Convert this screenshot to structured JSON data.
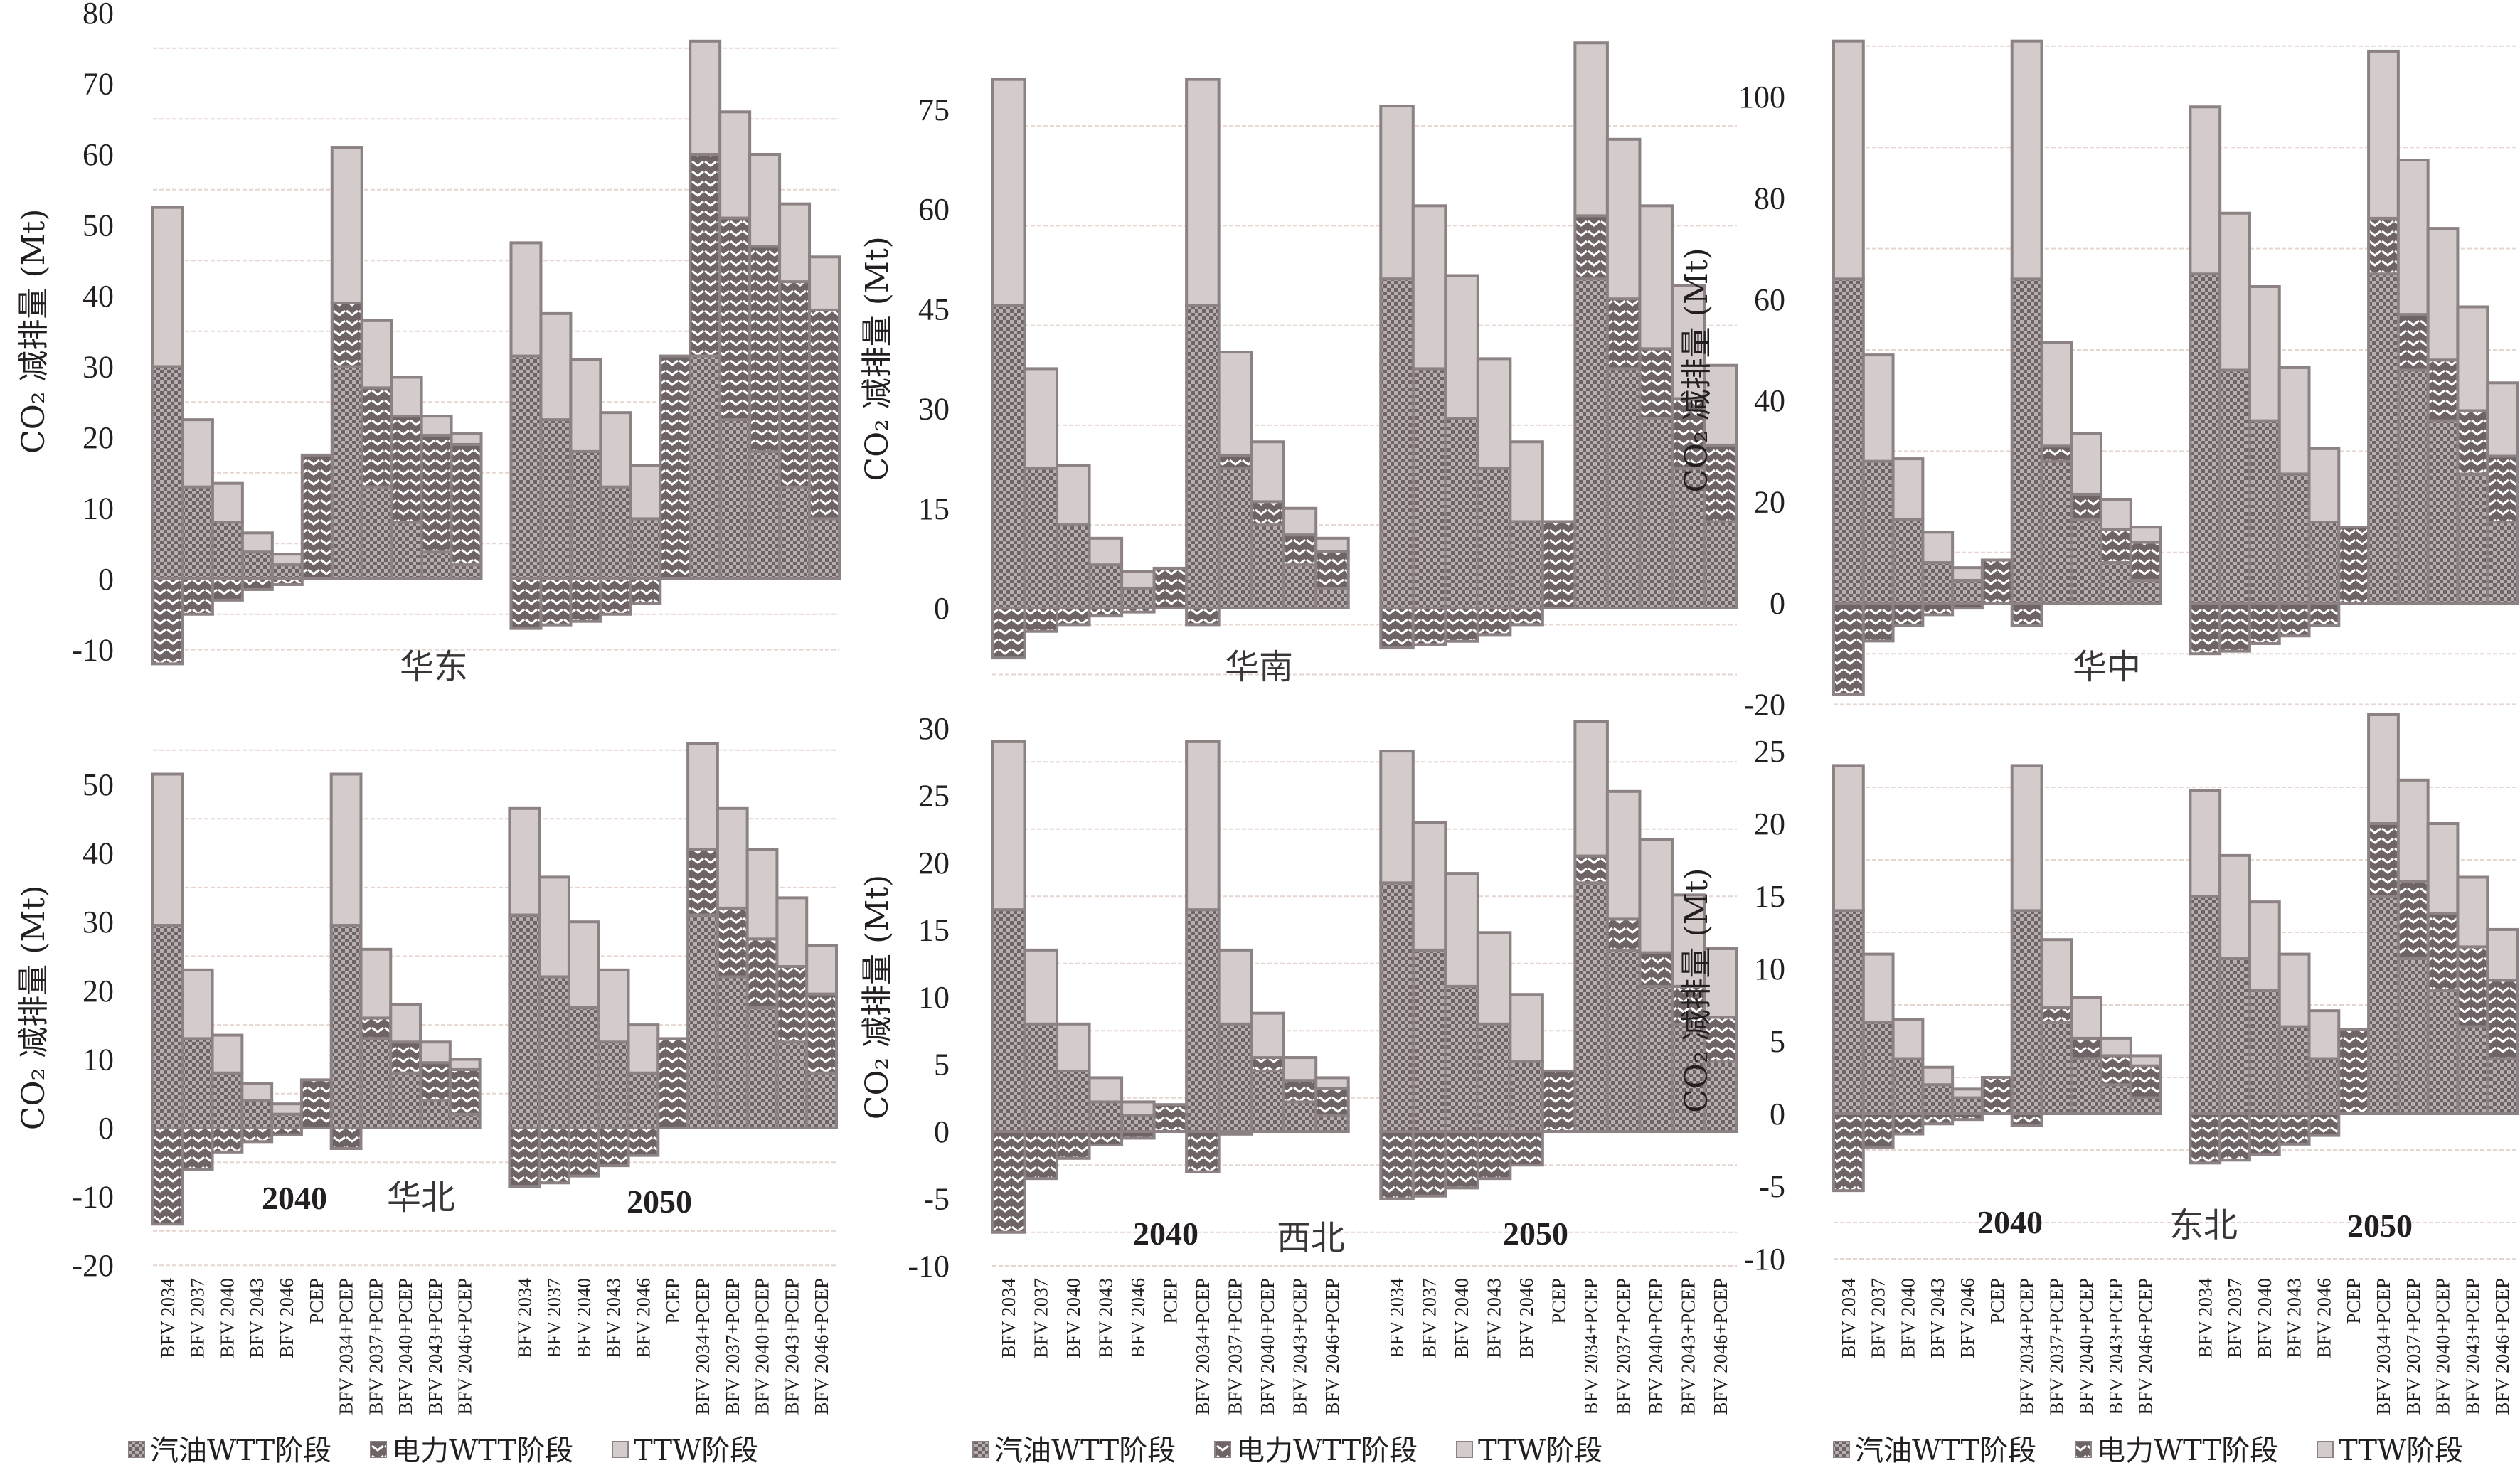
{
  "legend": {
    "gas_wtt": "汽油WTT阶段",
    "elec_wtt": "电力WTT阶段",
    "ttw": "TTW阶段"
  },
  "colors": {
    "ttw_fill": "#d3cccb",
    "pattern_dark": "#6e6465",
    "pattern_light": "#ffffff",
    "bar_border": "#8c8283",
    "grid": "#e6d6d0"
  },
  "chart_data": {
    "type": "bar",
    "stacked": true,
    "ylabel": "CO₂ 减排量 (Mt)",
    "categories": [
      "BFV 2034",
      "BFV 2037",
      "BFV 2040",
      "BFV 2043",
      "BFV 2046",
      "PCEP",
      "BFV 2034+PCEP",
      "BFV 2037+PCEP",
      "BFV 2040+PCEP",
      "BFV 2043+PCEP",
      "BFV 2046+PCEP"
    ],
    "groups": [
      "2040",
      "2050"
    ],
    "series_order": [
      "gas_wtt",
      "elec_wtt_positive",
      "ttw",
      "elec_wtt_negative"
    ],
    "legend_position": "bottom",
    "grid": true,
    "panels": [
      {
        "region": "华东",
        "year_labels_shown": false,
        "ylim": [
          -10,
          80
        ],
        "yticks": [
          -10,
          0,
          10,
          20,
          30,
          40,
          50,
          60,
          70,
          80
        ],
        "data": {
          "2040": [
            [
              30,
              0,
              22.5,
              -12
            ],
            [
              13,
              0,
              9.5,
              -5
            ],
            [
              8,
              0,
              5.5,
              -3
            ],
            [
              3.8,
              0,
              2.7,
              -1.5
            ],
            [
              2,
              0,
              1.5,
              -0.8
            ],
            [
              0,
              17.5,
              0,
              0
            ],
            [
              30,
              9,
              22,
              0
            ],
            [
              13,
              14,
              9.5,
              0
            ],
            [
              8,
              15,
              5.5,
              0
            ],
            [
              3.8,
              16.5,
              2.7,
              0
            ],
            [
              2,
              17,
              1.5,
              0
            ]
          ],
          "2050": [
            [
              31.5,
              0,
              16,
              -7
            ],
            [
              22.5,
              0,
              15,
              -6.5
            ],
            [
              18,
              0,
              13,
              -6
            ],
            [
              13,
              0,
              10.5,
              -5
            ],
            [
              8.5,
              0,
              7.5,
              -3.5
            ],
            [
              0,
              31.5,
              0,
              0
            ],
            [
              31.5,
              28.5,
              16,
              0
            ],
            [
              22.5,
              28.5,
              15,
              0
            ],
            [
              18,
              29,
              13,
              0
            ],
            [
              13,
              29,
              11,
              0
            ],
            [
              8.5,
              29.5,
              7.5,
              0
            ]
          ]
        }
      },
      {
        "region": "华南",
        "year_labels_shown": false,
        "ylim": [
          -10,
          85
        ],
        "yticks": [
          0,
          15,
          30,
          45,
          60,
          75
        ],
        "data": {
          "2040": [
            [
              45.5,
              0,
              34,
              -7.5
            ],
            [
              21,
              0,
              15,
              -3.5
            ],
            [
              12.5,
              0,
              9,
              -2.5
            ],
            [
              6.5,
              0,
              4,
              -1.2
            ],
            [
              3,
              0,
              2.5,
              -0.6
            ],
            [
              0,
              6,
              0,
              0
            ],
            [
              45.5,
              0,
              34,
              -2.5
            ],
            [
              21,
              2,
              15.5,
              0
            ],
            [
              12.5,
              3.5,
              9,
              0
            ],
            [
              6.5,
              4.5,
              4,
              0
            ],
            [
              3,
              5.5,
              2,
              0
            ]
          ],
          "2050": [
            [
              49.5,
              0,
              26,
              -6
            ],
            [
              36,
              0,
              24.5,
              -5.5
            ],
            [
              28.5,
              0,
              21.5,
              -5
            ],
            [
              21,
              0,
              16.5,
              -4
            ],
            [
              13,
              0,
              12,
              -2.5
            ],
            [
              0,
              13,
              0,
              0
            ],
            [
              49.5,
              9.5,
              26,
              0
            ],
            [
              36,
              10.5,
              24,
              0
            ],
            [
              28.5,
              10.5,
              21.5,
              0
            ],
            [
              21,
              10.5,
              17,
              0
            ],
            [
              13,
              11.5,
              12,
              0
            ]
          ]
        }
      },
      {
        "region": "华中",
        "year_labels_shown": false,
        "ylim": [
          -20,
          112
        ],
        "yticks": [
          -20,
          0,
          20,
          40,
          60,
          80,
          100
        ],
        "data": {
          "2040": [
            [
              64,
              0,
              47,
              -18
            ],
            [
              28,
              0,
              21,
              -7.5
            ],
            [
              16.5,
              0,
              12,
              -4.5
            ],
            [
              8,
              0,
              6,
              -2.3
            ],
            [
              4.5,
              0,
              2.5,
              -1
            ],
            [
              0,
              8.5,
              0,
              0
            ],
            [
              64,
              0,
              47,
              -4.5
            ],
            [
              28,
              3,
              20.5,
              0
            ],
            [
              16.5,
              5,
              12,
              0
            ],
            [
              8,
              6.5,
              6,
              0
            ],
            [
              4.5,
              7.5,
              3,
              0
            ]
          ],
          "2050": [
            [
              65,
              0,
              33,
              -10
            ],
            [
              46,
              0,
              31,
              -9.5
            ],
            [
              36,
              0,
              26.5,
              -8
            ],
            [
              25.5,
              0,
              21,
              -6.5
            ],
            [
              16,
              0,
              14.5,
              -4.5
            ],
            [
              0,
              15,
              0,
              0
            ],
            [
              65,
              11,
              33,
              0
            ],
            [
              46,
              11,
              30.5,
              0
            ],
            [
              36,
              12,
              26,
              0
            ],
            [
              25.5,
              12.5,
              20.5,
              0
            ],
            [
              16,
              13,
              14.5,
              0
            ]
          ]
        }
      },
      {
        "region": "华北",
        "year_labels_shown": true,
        "ylim": [
          -20,
          55
        ],
        "yticks": [
          -20,
          -10,
          0,
          10,
          20,
          30,
          40,
          50
        ],
        "data": {
          "2040": [
            [
              29.5,
              0,
              22,
              -14
            ],
            [
              13,
              0,
              10,
              -6
            ],
            [
              8,
              0,
              5.5,
              -3.5
            ],
            [
              4,
              0,
              2.5,
              -2
            ],
            [
              2,
              0,
              1.5,
              -1
            ],
            [
              0,
              7,
              0,
              0
            ],
            [
              29.5,
              0,
              22,
              -3
            ],
            [
              13,
              3,
              10,
              0
            ],
            [
              8,
              4.5,
              5.5,
              0
            ],
            [
              4,
              5.5,
              3,
              0
            ],
            [
              2,
              6.5,
              1.5,
              0
            ]
          ],
          "2050": [
            [
              31,
              0,
              15.5,
              -8.5
            ],
            [
              22,
              0,
              14.5,
              -8
            ],
            [
              17.5,
              0,
              12.5,
              -7
            ],
            [
              12.5,
              0,
              10.5,
              -5.5
            ],
            [
              8,
              0,
              7,
              -4
            ],
            [
              0,
              13,
              0,
              0
            ],
            [
              31,
              9.5,
              15.5,
              0
            ],
            [
              22,
              10,
              14.5,
              0
            ],
            [
              17.5,
              10,
              13,
              0
            ],
            [
              12.5,
              11,
              10,
              0
            ],
            [
              8,
              11.5,
              7,
              0
            ]
          ]
        }
      },
      {
        "region": "西北",
        "year_labels_shown": true,
        "ylim": [
          -10,
          30
        ],
        "yticks": [
          -10,
          -5,
          0,
          5,
          10,
          15,
          20,
          25,
          30
        ],
        "data": {
          "2040": [
            [
              16.5,
              0,
              12.5,
              -7.5
            ],
            [
              8,
              0,
              5.5,
              -3.5
            ],
            [
              4.5,
              0,
              3.5,
              -2
            ],
            [
              2.2,
              0,
              1.8,
              -1
            ],
            [
              1.2,
              0,
              1,
              -0.5
            ],
            [
              0,
              2,
              0,
              0
            ],
            [
              16.5,
              0,
              12.5,
              -3
            ],
            [
              8,
              0,
              5.5,
              -0.2
            ],
            [
              4.5,
              1,
              3.3,
              0
            ],
            [
              2.2,
              1.6,
              1.7,
              0
            ],
            [
              1.2,
              2,
              0.8,
              0
            ]
          ],
          "2050": [
            [
              18.5,
              0,
              9.8,
              -5
            ],
            [
              13.5,
              0,
              9.5,
              -4.8
            ],
            [
              10.8,
              0,
              8.4,
              -4.2
            ],
            [
              8,
              0,
              6.8,
              -3.5
            ],
            [
              5.2,
              0,
              5,
              -2.5
            ],
            [
              0,
              4.5,
              0,
              0
            ],
            [
              18.5,
              2,
              10,
              0
            ],
            [
              13.5,
              2.3,
              9.5,
              0
            ],
            [
              10.8,
              2.5,
              8.4,
              0
            ],
            [
              8,
              2.8,
              6.8,
              0
            ],
            [
              5.2,
              3.3,
              5.1,
              0
            ]
          ]
        }
      },
      {
        "region": "东北",
        "year_labels_shown": true,
        "ylim": [
          -10,
          27
        ],
        "yticks": [
          -10,
          -5,
          0,
          5,
          10,
          15,
          20,
          25
        ],
        "data": {
          "2040": [
            [
              14,
              0,
              10,
              -5.3
            ],
            [
              6.3,
              0,
              4.7,
              -2.3
            ],
            [
              3.8,
              0,
              2.7,
              -1.4
            ],
            [
              2,
              0,
              1.2,
              -0.7
            ],
            [
              1.1,
              0,
              0.6,
              -0.4
            ],
            [
              0,
              2.5,
              0,
              0
            ],
            [
              14,
              0,
              10,
              -0.8
            ],
            [
              6.3,
              1,
              4.7,
              0
            ],
            [
              3.8,
              1.4,
              2.8,
              0
            ],
            [
              2,
              2,
              1.2,
              0
            ],
            [
              1.1,
              2.2,
              0.7,
              0
            ]
          ],
          "2050": [
            [
              15,
              0,
              7.3,
              -3.4
            ],
            [
              10.7,
              0,
              7.1,
              -3.2
            ],
            [
              8.5,
              0,
              6.1,
              -2.8
            ],
            [
              6,
              0,
              5,
              -2.1
            ],
            [
              3.8,
              0,
              3.3,
              -1.5
            ],
            [
              0,
              5.8,
              0,
              0
            ],
            [
              15,
              5,
              7.5,
              0
            ],
            [
              10.7,
              5.3,
              7,
              0
            ],
            [
              8.5,
              5.3,
              6.2,
              0
            ],
            [
              6,
              5.5,
              4.8,
              0
            ],
            [
              3.8,
              5.4,
              3.5,
              0
            ]
          ]
        }
      }
    ]
  }
}
